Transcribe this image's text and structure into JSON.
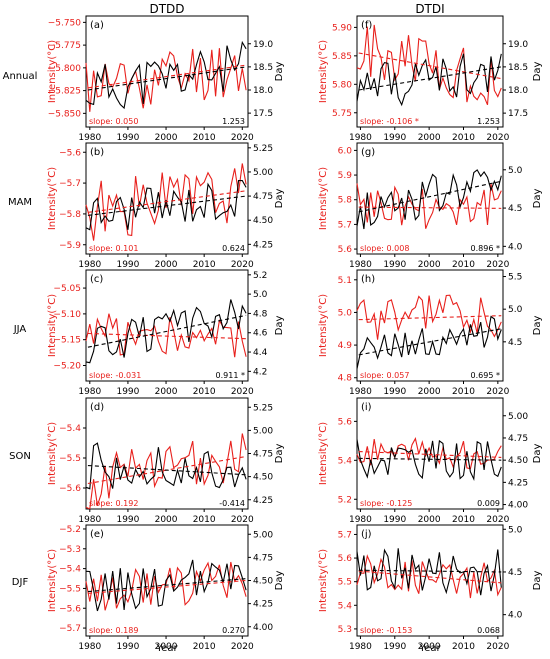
{
  "figure": {
    "column_titles": [
      "DTDD",
      "DTDI"
    ],
    "row_labels": [
      "Annual",
      "MAM",
      "JJA",
      "SON",
      "DJF"
    ],
    "xlabel": "Year",
    "left_ylabel": "Intensity(°C)",
    "right_ylabel": "Day",
    "colors": {
      "intensity": "#e8201c",
      "day": "#000000"
    }
  },
  "chart_data": [
    {
      "type": "line",
      "panel": "(a)",
      "column": "DTDD",
      "row": "Annual",
      "xlim": [
        1979,
        2021.5
      ],
      "xticks": [
        1980,
        1990,
        2000,
        2010,
        2020
      ],
      "y_left_lim": [
        -5.865,
        -5.743
      ],
      "y_left_ticks": [
        -5.85,
        -5.825,
        -5.8,
        -5.775,
        -5.75
      ],
      "y_left_tick_labels": [
        "−5.850",
        "−5.825",
        "−5.800",
        "−5.775",
        "−5.750"
      ],
      "y_right_lim": [
        17.2,
        19.6
      ],
      "y_right_ticks": [
        17.5,
        18.0,
        18.5,
        19.0
      ],
      "y_right_tick_labels": [
        "17.5",
        "18.0",
        "18.5",
        "19.0"
      ],
      "intensity_start": -5.818,
      "intensity_amp": 0.034,
      "intensity_trend_left": -5.822,
      "intensity_trend_right": -5.797,
      "day_start": 18.1,
      "day_amp": 0.55,
      "day_trend_left": 18.0,
      "day_trend_right": 18.5,
      "seed": 11,
      "slope_label": "slope: 0.050",
      "right_value": "1.253"
    },
    {
      "type": "line",
      "panel": "(f)",
      "column": "DTDI",
      "row": "Annual",
      "xlim": [
        1979,
        2021.5
      ],
      "xticks": [
        1980,
        1990,
        2000,
        2010,
        2020
      ],
      "y_left_lim": [
        5.725,
        5.92
      ],
      "y_left_ticks": [
        5.75,
        5.8,
        5.85,
        5.9
      ],
      "y_left_tick_labels": [
        "5.75",
        "5.80",
        "5.85",
        "5.90"
      ],
      "y_right_lim": [
        17.2,
        19.6
      ],
      "y_right_ticks": [
        17.5,
        18.0,
        18.5,
        19.0
      ],
      "y_right_tick_labels": [
        "17.5",
        "18.0",
        "18.5",
        "19.0"
      ],
      "intensity_start": 5.86,
      "intensity_amp": 0.055,
      "intensity_trend_left": 5.855,
      "intensity_trend_right": 5.81,
      "day_start": 18.0,
      "day_amp": 0.5,
      "day_trend_left": 18.0,
      "day_trend_right": 18.5,
      "seed": 21,
      "slope_label": "slope: -0.106 *",
      "right_value": "1.253"
    },
    {
      "type": "line",
      "panel": "(b)",
      "column": "DTDD",
      "row": "MAM",
      "xlim": [
        1979,
        2021.5
      ],
      "xticks": [
        1980,
        1990,
        2000,
        2010,
        2020
      ],
      "y_left_lim": [
        -5.93,
        -5.57
      ],
      "y_left_ticks": [
        -5.9,
        -5.8,
        -5.7,
        -5.6
      ],
      "y_left_tick_labels": [
        "−5.9",
        "−5.8",
        "−5.7",
        "−5.6"
      ],
      "y_right_lim": [
        4.15,
        5.3
      ],
      "y_right_ticks": [
        4.25,
        4.5,
        4.75,
        5.0,
        5.25
      ],
      "y_right_tick_labels": [
        "4.25",
        "4.50",
        "4.75",
        "5.00",
        "5.25"
      ],
      "intensity_start": -5.77,
      "intensity_amp": 0.1,
      "intensity_trend_left": -5.795,
      "intensity_trend_right": -5.725,
      "day_start": 4.55,
      "day_amp": 0.22,
      "day_trend_left": 4.55,
      "day_trend_right": 4.75,
      "seed": 31,
      "slope_label": "slope: 0.101",
      "right_value": "0.624"
    },
    {
      "type": "line",
      "panel": "(g)",
      "column": "DTDI",
      "row": "MAM",
      "xlim": [
        1979,
        2021.5
      ],
      "xticks": [
        1980,
        1990,
        2000,
        2010,
        2020
      ],
      "y_left_lim": [
        5.58,
        6.03
      ],
      "y_left_ticks": [
        5.6,
        5.7,
        5.8,
        5.9,
        6.0
      ],
      "y_left_tick_labels": [
        "5.6",
        "5.7",
        "5.8",
        "5.9",
        "6.0"
      ],
      "y_right_lim": [
        3.9,
        5.35
      ],
      "y_right_ticks": [
        4.0,
        4.5,
        5.0
      ],
      "y_right_tick_labels": [
        "4.0",
        "4.5",
        "5.0"
      ],
      "intensity_start": 5.77,
      "intensity_amp": 0.1,
      "intensity_trend_left": 5.77,
      "intensity_trend_right": 5.765,
      "day_start": 4.5,
      "day_amp": 0.28,
      "day_trend_left": 4.45,
      "day_trend_right": 4.85,
      "seed": 41,
      "slope_label": "slope: 0.008",
      "right_value": "0.896 *"
    },
    {
      "type": "line",
      "panel": "(c)",
      "column": "DTDD",
      "row": "JJA",
      "xlim": [
        1979,
        2021.5
      ],
      "xticks": [
        1980,
        1990,
        2000,
        2010,
        2020
      ],
      "y_left_lim": [
        -5.23,
        -5.015
      ],
      "y_left_ticks": [
        -5.2,
        -5.15,
        -5.1,
        -5.05
      ],
      "y_left_tick_labels": [
        "−5.20",
        "−5.15",
        "−5.10",
        "−5.05"
      ],
      "y_right_lim": [
        4.1,
        5.25
      ],
      "y_right_ticks": [
        4.2,
        4.4,
        4.6,
        4.8,
        5.0,
        5.2
      ],
      "y_right_tick_labels": [
        "4.2",
        "4.4",
        "4.6",
        "4.8",
        "5.0",
        "5.2"
      ],
      "intensity_start": -5.14,
      "intensity_amp": 0.045,
      "intensity_trend_left": -5.138,
      "intensity_trend_right": -5.148,
      "day_start": 4.5,
      "day_amp": 0.2,
      "day_trend_left": 4.45,
      "day_trend_right": 4.78,
      "seed": 51,
      "slope_label": "slope: -0.031",
      "right_value": "0.911 *"
    },
    {
      "type": "line",
      "panel": "(h)",
      "column": "DTDI",
      "row": "JJA",
      "xlim": [
        1979,
        2021.5
      ],
      "xticks": [
        1980,
        1990,
        2000,
        2010,
        2020
      ],
      "y_left_lim": [
        4.79,
        5.13
      ],
      "y_left_ticks": [
        4.8,
        4.9,
        5.0,
        5.1
      ],
      "y_left_tick_labels": [
        "4.8",
        "4.9",
        "5.0",
        "5.1"
      ],
      "y_right_lim": [
        3.9,
        5.6
      ],
      "y_right_ticks": [
        4.5,
        5.0,
        5.5
      ],
      "y_right_tick_labels": [
        "4.5",
        "5.0",
        "5.5"
      ],
      "intensity_start": 4.98,
      "intensity_amp": 0.07,
      "intensity_trend_left": 4.978,
      "intensity_trend_right": 4.99,
      "day_start": 4.3,
      "day_amp": 0.25,
      "day_trend_left": 4.3,
      "day_trend_right": 4.7,
      "seed": 61,
      "slope_label": "slope: 0.057",
      "right_value": "0.695 *"
    },
    {
      "type": "line",
      "panel": "(d)",
      "column": "DTDD",
      "row": "SON",
      "xlim": [
        1979,
        2021.5
      ],
      "xticks": [
        1980,
        1990,
        2000,
        2010,
        2020
      ],
      "y_left_lim": [
        -5.67,
        -5.3
      ],
      "y_left_ticks": [
        -5.6,
        -5.5,
        -5.4
      ],
      "y_left_tick_labels": [
        "−5.6",
        "−5.5",
        "−5.4"
      ],
      "y_right_lim": [
        4.15,
        5.35
      ],
      "y_right_ticks": [
        4.25,
        4.5,
        4.75,
        5.0,
        5.25
      ],
      "y_right_tick_labels": [
        "4.25",
        "4.50",
        "4.75",
        "5.00",
        "5.25"
      ],
      "intensity_start": -5.57,
      "intensity_amp": 0.09,
      "intensity_trend_left": -5.585,
      "intensity_trend_right": -5.495,
      "day_start": 4.6,
      "day_amp": 0.25,
      "day_trend_left": 4.62,
      "day_trend_right": 4.52,
      "seed": 71,
      "slope_label": "slope: 0.192",
      "right_value": "-0.414"
    },
    {
      "type": "line",
      "panel": "(i)",
      "column": "DTDI",
      "row": "SON",
      "xlim": [
        1979,
        2021.5
      ],
      "xticks": [
        1980,
        1990,
        2000,
        2010,
        2020
      ],
      "y_left_lim": [
        5.15,
        5.72
      ],
      "y_left_ticks": [
        5.2,
        5.4,
        5.6
      ],
      "y_left_tick_labels": [
        "5.2",
        "5.4",
        "5.6"
      ],
      "y_right_lim": [
        3.95,
        5.2
      ],
      "y_right_ticks": [
        4.0,
        4.25,
        4.5,
        4.75,
        5.0
      ],
      "y_right_tick_labels": [
        "4.00",
        "4.25",
        "4.50",
        "4.75",
        "5.00"
      ],
      "intensity_start": 5.43,
      "intensity_amp": 0.08,
      "intensity_trend_left": 5.445,
      "intensity_trend_right": 5.415,
      "day_start": 4.45,
      "day_amp": 0.22,
      "day_trend_left": 4.52,
      "day_trend_right": 4.5,
      "seed": 81,
      "slope_label": "slope: -0.125",
      "right_value": "0.009"
    },
    {
      "type": "line",
      "panel": "(e)",
      "column": "DTDD",
      "row": "DJF",
      "xlim": [
        1979,
        2021.5
      ],
      "xticks": [
        1980,
        1990,
        2000,
        2010,
        2020
      ],
      "y_left_lim": [
        -5.74,
        -5.18
      ],
      "y_left_ticks": [
        -5.7,
        -5.6,
        -5.5,
        -5.4,
        -5.3,
        -5.2
      ],
      "y_left_tick_labels": [
        "−5.7",
        "−5.6",
        "−5.5",
        "−5.4",
        "−5.3",
        "−5.2"
      ],
      "y_right_lim": [
        3.9,
        5.1
      ],
      "y_right_ticks": [
        4.0,
        4.25,
        4.5,
        4.75,
        5.0
      ],
      "y_right_tick_labels": [
        "4.00",
        "4.25",
        "4.50",
        "4.75",
        "5.00"
      ],
      "intensity_start": -5.5,
      "intensity_amp": 0.11,
      "intensity_trend_left": -5.525,
      "intensity_trend_right": -5.46,
      "day_start": 4.4,
      "day_amp": 0.25,
      "day_trend_left": 4.38,
      "day_trend_right": 4.52,
      "seed": 91,
      "slope_label": "slope: 0.189",
      "right_value": "0.270"
    },
    {
      "type": "line",
      "panel": "(j)",
      "column": "DTDI",
      "row": "DJF",
      "xlim": [
        1979,
        2021.5
      ],
      "xticks": [
        1980,
        1990,
        2000,
        2010,
        2020
      ],
      "y_left_lim": [
        5.27,
        5.74
      ],
      "y_left_ticks": [
        5.3,
        5.4,
        5.5,
        5.6,
        5.7
      ],
      "y_left_tick_labels": [
        "5.3",
        "5.4",
        "5.5",
        "5.6",
        "5.7"
      ],
      "y_right_lim": [
        3.75,
        5.05
      ],
      "y_right_ticks": [
        4.0,
        4.5,
        5.0
      ],
      "y_right_tick_labels": [
        "4.0",
        "4.5",
        "5.0"
      ],
      "intensity_start": 5.54,
      "intensity_amp": 0.08,
      "intensity_trend_left": 5.545,
      "intensity_trend_right": 5.495,
      "day_start": 4.5,
      "day_amp": 0.28,
      "day_trend_left": 4.52,
      "day_trend_right": 4.5,
      "seed": 101,
      "slope_label": "slope: -0.153",
      "right_value": "0.068"
    }
  ]
}
